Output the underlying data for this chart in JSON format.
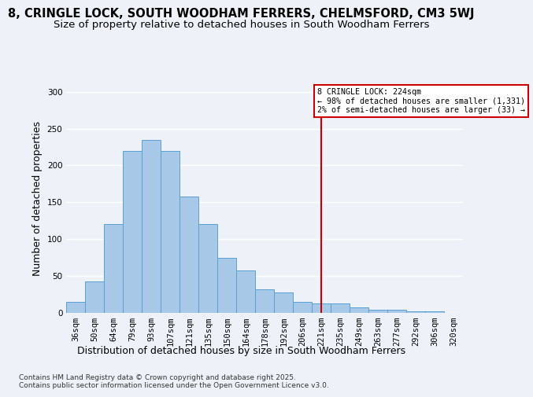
{
  "title1": "8, CRINGLE LOCK, SOUTH WOODHAM FERRERS, CHELMSFORD, CM3 5WJ",
  "title2": "Size of property relative to detached houses in South Woodham Ferrers",
  "xlabel": "Distribution of detached houses by size in South Woodham Ferrers",
  "ylabel": "Number of detached properties",
  "categories": [
    "36sqm",
    "50sqm",
    "64sqm",
    "79sqm",
    "93sqm",
    "107sqm",
    "121sqm",
    "135sqm",
    "150sqm",
    "164sqm",
    "178sqm",
    "192sqm",
    "206sqm",
    "221sqm",
    "235sqm",
    "249sqm",
    "263sqm",
    "277sqm",
    "292sqm",
    "306sqm",
    "320sqm"
  ],
  "values": [
    14,
    42,
    120,
    220,
    235,
    220,
    158,
    120,
    74,
    57,
    32,
    27,
    14,
    12,
    12,
    7,
    4,
    4,
    2,
    2,
    0
  ],
  "bar_color": "#a8c8e8",
  "bar_edge_color": "#5a9fd4",
  "vline_x": 13,
  "vline_color": "#cc0000",
  "annotation_text": "8 CRINGLE LOCK: 224sqm\n← 98% of detached houses are smaller (1,331)\n2% of semi-detached houses are larger (33) →",
  "annotation_box_color": "#cc0000",
  "ylim": [
    0,
    310
  ],
  "yticks": [
    0,
    50,
    100,
    150,
    200,
    250,
    300
  ],
  "footnote": "Contains HM Land Registry data © Crown copyright and database right 2025.\nContains public sector information licensed under the Open Government Licence v3.0.",
  "bg_color": "#eef2f8",
  "plot_bg_color": "#eef2f8",
  "grid_color": "#ffffff",
  "title_fontsize": 10.5,
  "subtitle_fontsize": 9.5,
  "axis_label_fontsize": 9,
  "tick_fontsize": 7.5,
  "footnote_fontsize": 6.5
}
